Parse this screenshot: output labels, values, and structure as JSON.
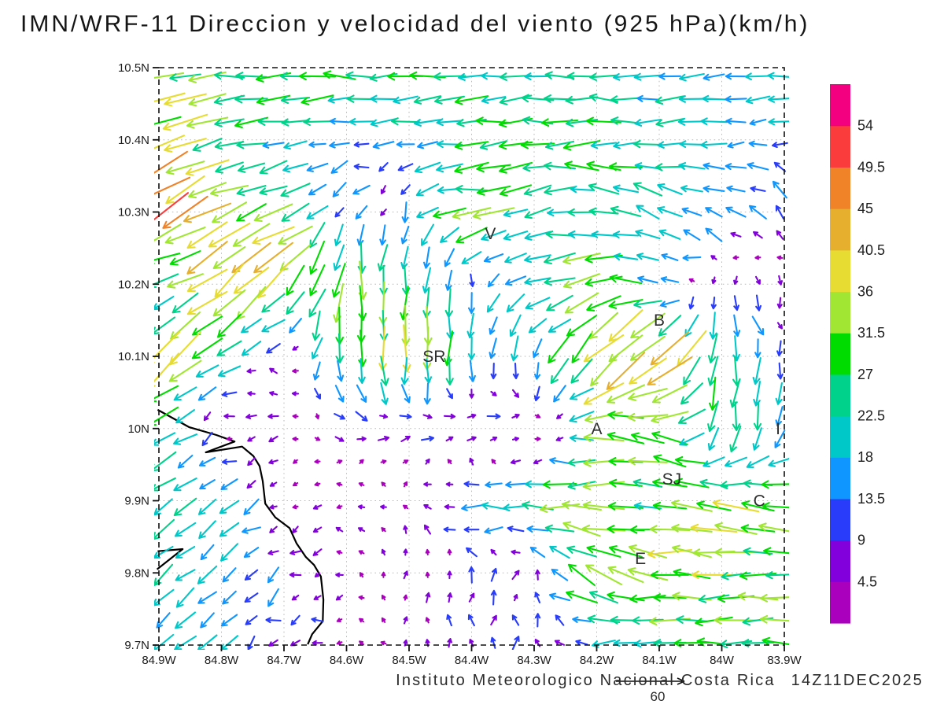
{
  "title": "IMN/WRF-11 Direccion y velocidad del viento (925 hPa)(km/h)",
  "footer": {
    "credit": "Instituto Meteorologico Nacional Costa Rica",
    "timestamp": "14Z11DEC2025"
  },
  "reference_vector": {
    "label": "60",
    "value_kmh": 60
  },
  "chart_data": {
    "type": "quiver",
    "title": "IMN/WRF-11 Direccion y velocidad del viento (925 hPa)(km/h)",
    "units": "km/h",
    "level": "925 hPa",
    "grid": true,
    "x_axis": {
      "tick_labels": [
        "84.9W",
        "84.8W",
        "84.7W",
        "84.6W",
        "84.5W",
        "84.4W",
        "84.3W",
        "84.2W",
        "84.1W",
        "84W",
        "83.9W"
      ],
      "values_lon_west": [
        84.9,
        84.8,
        84.7,
        84.6,
        84.5,
        84.4,
        84.3,
        84.2,
        84.1,
        84.0,
        83.9
      ]
    },
    "y_axis": {
      "tick_labels": [
        "10.5N",
        "10.4N",
        "10.3N",
        "10.2N",
        "10.1N",
        "10N",
        "9.9N",
        "9.8N",
        "9.7N"
      ],
      "values_lat": [
        10.5,
        10.4,
        10.3,
        10.2,
        10.1,
        10.0,
        9.9,
        9.8,
        9.7
      ]
    },
    "colorbar": {
      "units": "km/h",
      "levels": [
        4.5,
        9,
        13.5,
        18,
        22.5,
        27,
        31.5,
        36,
        40.5,
        45,
        49.5,
        54
      ],
      "level_labels": [
        "4.5",
        "9",
        "13.5",
        "18",
        "22.5",
        "27",
        "31.5",
        "36",
        "40.5",
        "45",
        "49.5",
        "54"
      ],
      "colors_low_to_high": [
        "#aa00be",
        "#8200dc",
        "#283cfa",
        "#0f96ff",
        "#00c8c8",
        "#00d28c",
        "#00dc00",
        "#a0e632",
        "#e6dc32",
        "#e6af2d",
        "#f08228",
        "#fa3c3c",
        "#f20080"
      ]
    },
    "stations": [
      {
        "label": "V",
        "lon_west": 84.37,
        "lat": 10.27
      },
      {
        "label": "B",
        "lon_west": 84.1,
        "lat": 10.15
      },
      {
        "label": "SR",
        "lon_west": 84.46,
        "lat": 10.1
      },
      {
        "label": "A",
        "lon_west": 84.2,
        "lat": 10.0
      },
      {
        "label": "SJ",
        "lon_west": 84.08,
        "lat": 9.93
      },
      {
        "label": "C",
        "lon_west": 83.94,
        "lat": 9.9
      },
      {
        "label": "E",
        "lon_west": 84.13,
        "lat": 9.82
      },
      {
        "label": "I",
        "lon_west": 83.91,
        "lat": 10.0
      }
    ],
    "coastlines": [
      [
        [
          84.902,
          10.026
        ],
        [
          84.852,
          10.002
        ],
        [
          84.808,
          9.991
        ],
        [
          84.779,
          9.982
        ],
        [
          84.825,
          9.967
        ],
        [
          84.767,
          9.975
        ],
        [
          84.749,
          9.962
        ],
        [
          84.739,
          9.948
        ],
        [
          84.734,
          9.927
        ],
        [
          84.73,
          9.896
        ],
        [
          84.714,
          9.877
        ],
        [
          84.691,
          9.862
        ],
        [
          84.68,
          9.841
        ],
        [
          84.665,
          9.822
        ],
        [
          84.652,
          9.811
        ],
        [
          84.641,
          9.795
        ],
        [
          84.637,
          9.763
        ],
        [
          84.638,
          9.733
        ],
        [
          84.655,
          9.715
        ],
        [
          84.662,
          9.701
        ]
      ],
      [
        [
          84.902,
          9.83
        ],
        [
          84.862,
          9.833
        ],
        [
          84.903,
          9.805
        ]
      ]
    ],
    "reference_vector_kmh": 60,
    "wind_grid": {
      "note": "direction = compass degrees the arrow points toward (0=N,90=E,180=S,270=W); speed in km/h; rows ordered lat 10.5N to 9.7N, cols lon 84.9W to 83.9W",
      "lon_west": [
        84.9,
        84.8,
        84.7,
        84.6,
        84.5,
        84.4,
        84.3,
        84.2,
        84.1,
        84.0,
        83.9
      ],
      "lat": [
        10.5,
        10.4,
        10.3,
        10.2,
        10.1,
        10.0,
        9.9,
        9.8,
        9.7
      ],
      "vectors": [
        [
          [
            265,
            29
          ],
          [
            268,
            30
          ],
          [
            270,
            29
          ],
          [
            272,
            28
          ],
          [
            270,
            26
          ],
          [
            268,
            24
          ],
          [
            270,
            22
          ],
          [
            272,
            21
          ],
          [
            270,
            20
          ],
          [
            268,
            19
          ],
          [
            270,
            18
          ]
        ],
        [
          [
            242,
            42
          ],
          [
            265,
            28
          ],
          [
            262,
            20
          ],
          [
            258,
            14
          ],
          [
            262,
            18
          ],
          [
            265,
            26
          ],
          [
            268,
            28
          ],
          [
            270,
            26
          ],
          [
            268,
            22
          ],
          [
            265,
            18
          ],
          [
            262,
            15
          ]
        ],
        [
          [
            238,
            50
          ],
          [
            242,
            38
          ],
          [
            250,
            28
          ],
          [
            195,
            11
          ],
          [
            210,
            12
          ],
          [
            262,
            35
          ],
          [
            255,
            20
          ],
          [
            285,
            22
          ],
          [
            295,
            22
          ],
          [
            300,
            18
          ],
          [
            310,
            13
          ]
        ],
        [
          [
            265,
            20
          ],
          [
            228,
            42
          ],
          [
            225,
            38
          ],
          [
            183,
            28
          ],
          [
            180,
            30
          ],
          [
            186,
            12
          ],
          [
            250,
            25
          ],
          [
            262,
            35
          ],
          [
            300,
            15
          ],
          [
            160,
            7
          ],
          [
            170,
            6
          ]
        ],
        [
          [
            230,
            38
          ],
          [
            232,
            24
          ],
          [
            300,
            6
          ],
          [
            182,
            29
          ],
          [
            185,
            36
          ],
          [
            184,
            22
          ],
          [
            186,
            18
          ],
          [
            222,
            42
          ],
          [
            225,
            48
          ],
          [
            184,
            28
          ],
          [
            182,
            12
          ]
        ],
        [
          [
            235,
            28
          ],
          [
            280,
            5
          ],
          [
            255,
            6
          ],
          [
            85,
            11
          ],
          [
            72,
            12
          ],
          [
            58,
            12
          ],
          [
            80,
            10
          ],
          [
            272,
            30
          ],
          [
            288,
            36
          ],
          [
            188,
            28
          ],
          [
            185,
            17
          ]
        ],
        [
          [
            235,
            21
          ],
          [
            232,
            20
          ],
          [
            270,
            4
          ],
          [
            265,
            5
          ],
          [
            315,
            5
          ],
          [
            268,
            20
          ],
          [
            270,
            29
          ],
          [
            268,
            30
          ],
          [
            280,
            26
          ],
          [
            290,
            35
          ],
          [
            275,
            33
          ]
        ],
        [
          [
            232,
            20
          ],
          [
            230,
            18
          ],
          [
            235,
            12
          ],
          [
            280,
            4
          ],
          [
            0,
            5
          ],
          [
            5,
            10
          ],
          [
            15,
            6
          ],
          [
            295,
            38
          ],
          [
            272,
            36
          ],
          [
            268,
            30
          ],
          [
            270,
            28
          ]
        ],
        [
          [
            230,
            19
          ],
          [
            228,
            18
          ],
          [
            255,
            10
          ],
          [
            265,
            4
          ],
          [
            355,
            4
          ],
          [
            2,
            10
          ],
          [
            350,
            9
          ],
          [
            265,
            17
          ],
          [
            268,
            26
          ],
          [
            272,
            32
          ],
          [
            268,
            28
          ]
        ]
      ]
    }
  }
}
